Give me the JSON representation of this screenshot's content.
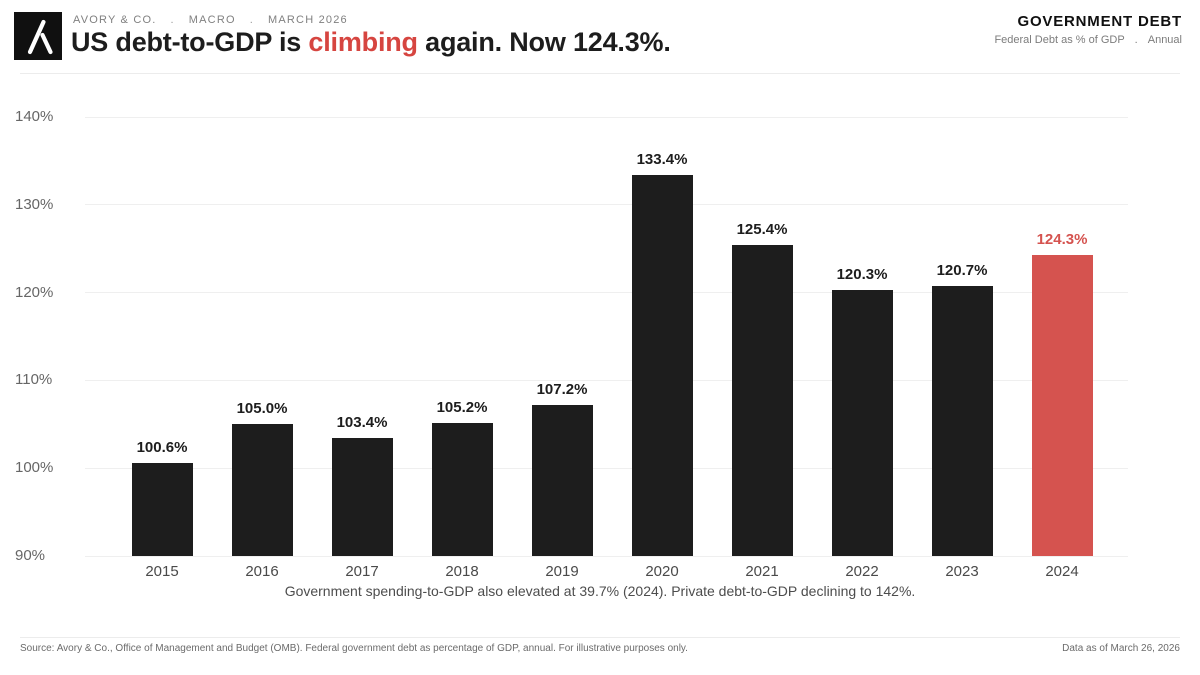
{
  "colors": {
    "accent_red": "#d64540",
    "ink": "#1d1d1d"
  },
  "header": {
    "kicker_items": [
      "AVORY & CO.",
      "MACRO",
      "MARCH 2026"
    ],
    "kicker_separator": ".",
    "title": {
      "pre": "US debt-to-GDP is ",
      "highlight": "climbing",
      "post": " again. Now 124.3%."
    },
    "right_title": "GOVERNMENT DEBT",
    "right_subtitle_items": [
      "Federal Debt as % of GDP",
      "Annual"
    ],
    "right_subtitle_separator": "."
  },
  "chart_data": {
    "type": "bar",
    "title": "US debt-to-GDP is climbing again. Now 124.3%.",
    "categories": [
      "2015",
      "2016",
      "2017",
      "2018",
      "2019",
      "2020",
      "2021",
      "2022",
      "2023",
      "2024"
    ],
    "values": [
      100.6,
      105.0,
      103.4,
      105.2,
      107.2,
      133.4,
      125.4,
      120.3,
      120.7,
      124.3
    ],
    "labels": [
      "100.6%",
      "105.0%",
      "103.4%",
      "105.2%",
      "107.2%",
      "133.4%",
      "125.4%",
      "120.3%",
      "120.7%",
      "124.3%"
    ],
    "highlight_index": 9,
    "bar_color": "#1d1d1d",
    "highlight_color": "#d5534f",
    "ylim": [
      90,
      140
    ],
    "yticks": [
      90,
      100,
      110,
      120,
      130,
      140
    ],
    "ytick_labels": [
      "90%",
      "100%",
      "110%",
      "120%",
      "130%",
      "140%"
    ],
    "grid": true,
    "legend": "none",
    "xlabel": "",
    "ylabel": "Federal Debt as % of GDP",
    "caption": "Government spending-to-GDP also elevated at 39.7% (2024). Private debt-to-GDP declining to 142%."
  },
  "footer": {
    "source": "Source: Avory & Co., Office of Management and Budget (OMB). Federal government debt as percentage of GDP, annual. For illustrative purposes only.",
    "data_as_of": "Data as of March 26, 2026"
  }
}
